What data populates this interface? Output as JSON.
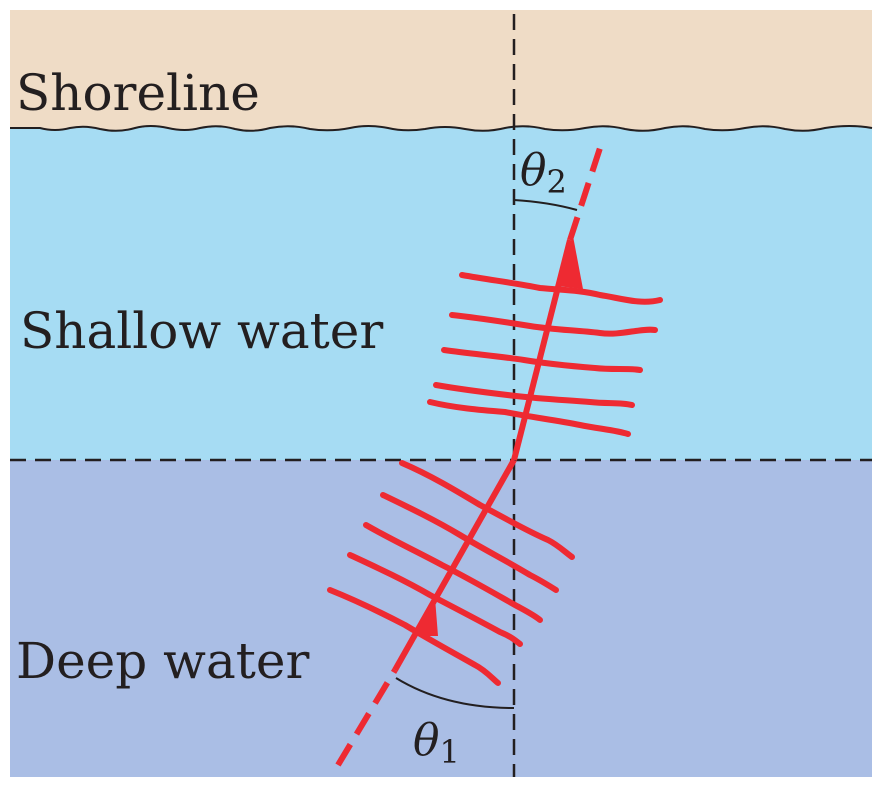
{
  "labels": {
    "shoreline": "Shoreline",
    "shallow_water": "Shallow water",
    "deep_water": "Deep water",
    "theta_symbol": "θ",
    "theta_1_subscript": "1",
    "theta_2_subscript": "2"
  },
  "colors": {
    "shoreline": "#efdcc6",
    "shallow_water": "#a6dcf3",
    "deep_water": "#aabee5",
    "wave": "#ee2a32",
    "line": "#231f20"
  },
  "icons": {
    "arrow_head": "arrow-head-icon"
  }
}
